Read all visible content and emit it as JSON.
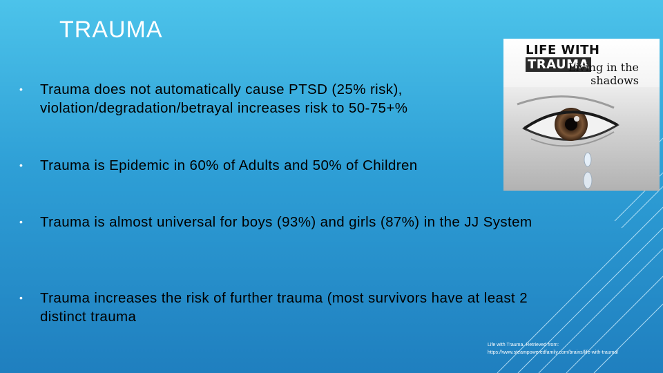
{
  "slide": {
    "title": "TRAUMA",
    "bullets": [
      "Trauma does not automatically cause PTSD (25% risk), violation/degradation/betrayal increases risk to 50-75+%",
      "Trauma is Epidemic in 60% of Adults and 50% of Children",
      "Trauma is almost universal for boys (93%) and girls (87%) in the JJ System",
      "Trauma increases the risk of further trauma (most survivors have at least 2 distinct trauma"
    ],
    "bullet_marker": "•",
    "image": {
      "header_word1": "LIFE WITH",
      "header_word2": "TRAUMA",
      "subtitle_line1": "Living in the",
      "subtitle_line2": "shadows"
    },
    "credit_line1": "Life with Trauma. Retrieved from:",
    "credit_line2": "https://www.steampoweredfamily.com/brains/life-with-trauma/"
  },
  "colors": {
    "background_top": "#4cc3ea",
    "background_bottom": "#1f7fbf",
    "title": "#ffffff",
    "body_text": "#000000"
  }
}
